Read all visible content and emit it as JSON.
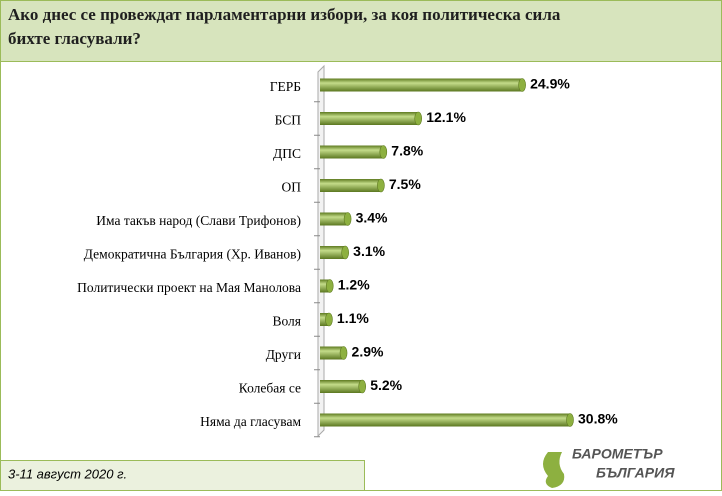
{
  "chart_data": {
    "type": "bar",
    "orientation": "horizontal",
    "title": "Ако днес се провеждат парламентарни избори, за коя политическа сила бихте гласували?",
    "categories": [
      "ГЕРБ",
      "БСП",
      "ДПС",
      "ОП",
      "Има такъв народ (Слави Трифонов)",
      "Демократична България (Хр. Иванов)",
      "Политически проект на Мая Манолова",
      "Воля",
      "Други",
      "Колебая се",
      "Няма да гласувам"
    ],
    "values": [
      24.9,
      12.1,
      7.8,
      7.5,
      3.4,
      3.1,
      1.2,
      1.1,
      2.9,
      5.2,
      30.8
    ],
    "value_labels": [
      "24.9%",
      "12.1%",
      "7.8%",
      "7.5%",
      "3.4%",
      "3.1%",
      "1.2%",
      "1.1%",
      "2.9%",
      "5.2%",
      "30.8%"
    ],
    "color": "#8db040",
    "footnote": "3-11 август 2020 г.",
    "logo": [
      "БАРОМЕТЪР",
      "БЪЛГАРИЯ"
    ]
  }
}
